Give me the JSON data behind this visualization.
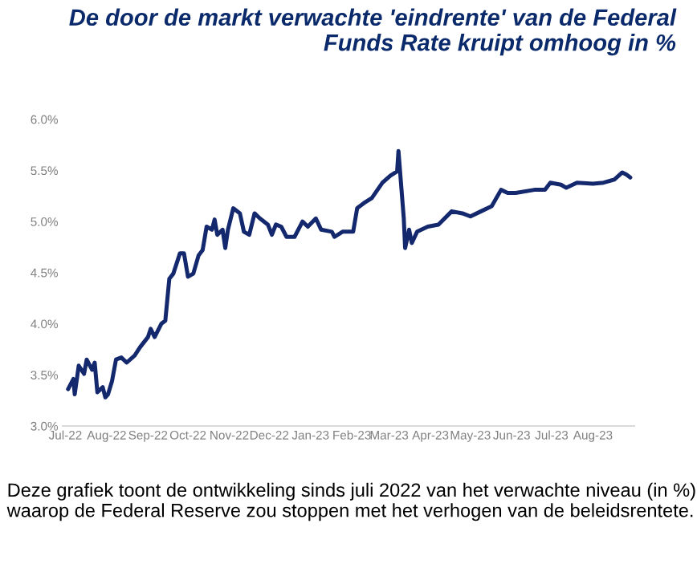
{
  "chart_data": {
    "type": "line",
    "title": "De door de markt verwachte 'eindrente' van de Federal Funds Rate kruipt omhoog in %",
    "annotations": [
      "Deze grafiek toont de ontwikkeling sinds juli 2022 van het verwachte niveau (in %) waarop de Federal Reserve zou stoppen met het verhogen van de beleidsrentete."
    ],
    "x": [
      "2022-07-03",
      "2022-07-07",
      "2022-07-08",
      "2022-07-11",
      "2022-07-15",
      "2022-07-17",
      "2022-07-21",
      "2022-07-23",
      "2022-07-25",
      "2022-07-29",
      "2022-07-31",
      "2022-08-02",
      "2022-08-05",
      "2022-08-08",
      "2022-08-12",
      "2022-08-16",
      "2022-08-22",
      "2022-08-26",
      "2022-09-01",
      "2022-09-03",
      "2022-09-06",
      "2022-09-11",
      "2022-09-14",
      "2022-09-17",
      "2022-09-20",
      "2022-09-25",
      "2022-09-28",
      "2022-10-01",
      "2022-10-05",
      "2022-10-09",
      "2022-10-12",
      "2022-10-15",
      "2022-10-19",
      "2022-10-21",
      "2022-10-23",
      "2022-10-27",
      "2022-10-29",
      "2022-10-31",
      "2022-11-04",
      "2022-11-09",
      "2022-11-12",
      "2022-11-16",
      "2022-11-20",
      "2022-11-24",
      "2022-11-30",
      "2022-12-03",
      "2022-12-06",
      "2022-12-10",
      "2022-12-14",
      "2022-12-20",
      "2022-12-26",
      "2022-12-30",
      "2023-01-05",
      "2023-01-09",
      "2023-01-17",
      "2023-01-19",
      "2023-01-25",
      "2023-02-02",
      "2023-02-05",
      "2023-02-10",
      "2023-02-16",
      "2023-02-24",
      "2023-03-02",
      "2023-03-07",
      "2023-03-08",
      "2023-03-12",
      "2023-03-13",
      "2023-03-16",
      "2023-03-18",
      "2023-03-22",
      "2023-03-30",
      "2023-04-07",
      "2023-04-17",
      "2023-04-25",
      "2023-05-01",
      "2023-05-09",
      "2023-05-17",
      "2023-05-24",
      "2023-05-29",
      "2023-06-04",
      "2023-06-18",
      "2023-06-26",
      "2023-06-30",
      "2023-07-08",
      "2023-07-12",
      "2023-07-20",
      "2023-08-01",
      "2023-08-09",
      "2023-08-17",
      "2023-08-23",
      "2023-08-26",
      "2023-08-29"
    ],
    "series": [
      {
        "color": "#14286e",
        "values": [
          3.36,
          3.46,
          3.31,
          3.59,
          3.51,
          3.65,
          3.55,
          3.62,
          3.33,
          3.38,
          3.28,
          3.31,
          3.44,
          3.65,
          3.67,
          3.62,
          3.69,
          3.77,
          3.87,
          3.95,
          3.87,
          4.0,
          4.03,
          4.44,
          4.49,
          4.69,
          4.69,
          4.46,
          4.49,
          4.67,
          4.72,
          4.95,
          4.92,
          5.02,
          4.87,
          4.92,
          4.74,
          4.92,
          5.13,
          5.08,
          4.9,
          4.87,
          5.08,
          5.03,
          4.97,
          4.87,
          4.97,
          4.95,
          4.85,
          4.85,
          5.0,
          4.95,
          5.03,
          4.92,
          4.9,
          4.85,
          4.9,
          4.9,
          5.13,
          5.18,
          5.23,
          5.38,
          5.45,
          5.49,
          5.69,
          5.03,
          4.74,
          4.92,
          4.79,
          4.9,
          4.95,
          4.97,
          5.1,
          5.08,
          5.05,
          5.1,
          5.15,
          5.31,
          5.28,
          5.28,
          5.31,
          5.31,
          5.38,
          5.36,
          5.33,
          5.38,
          5.37,
          5.38,
          5.41,
          5.48,
          5.46,
          5.43
        ]
      }
    ],
    "xlim": [
      "2022-06-29",
      "2023-09-01"
    ],
    "xticks": [
      {
        "value": "2022-07-01",
        "label": "Jul-22"
      },
      {
        "value": "2022-08-01",
        "label": "Aug-22"
      },
      {
        "value": "2022-09-01",
        "label": "Sep-22"
      },
      {
        "value": "2022-10-01",
        "label": "Oct-22"
      },
      {
        "value": "2022-11-01",
        "label": "Nov-22"
      },
      {
        "value": "2022-12-01",
        "label": "Dec-22"
      },
      {
        "value": "2023-01-01",
        "label": "Jan-23"
      },
      {
        "value": "2023-02-01",
        "label": "Feb-23"
      },
      {
        "value": "2023-03-01",
        "label": "Mar-23"
      },
      {
        "value": "2023-04-01",
        "label": "Apr-23"
      },
      {
        "value": "2023-05-01",
        "label": "May-23"
      },
      {
        "value": "2023-06-01",
        "label": "Jun-23"
      },
      {
        "value": "2023-07-01",
        "label": "Jul-23"
      },
      {
        "value": "2023-08-01",
        "label": "Aug-23"
      }
    ],
    "ylim": [
      3.0,
      6.0
    ],
    "yticks": [
      {
        "value": 3.0,
        "label": "3.0%"
      },
      {
        "value": 3.5,
        "label": "3.5%"
      },
      {
        "value": 4.0,
        "label": "4.0%"
      },
      {
        "value": 4.5,
        "label": "4.5%"
      },
      {
        "value": 5.0,
        "label": "5.0%"
      },
      {
        "value": 5.5,
        "label": "5.5%"
      },
      {
        "value": 6.0,
        "label": "6.0%"
      }
    ],
    "grid": false,
    "legend": false,
    "marker": "none",
    "line_style": "solid"
  }
}
